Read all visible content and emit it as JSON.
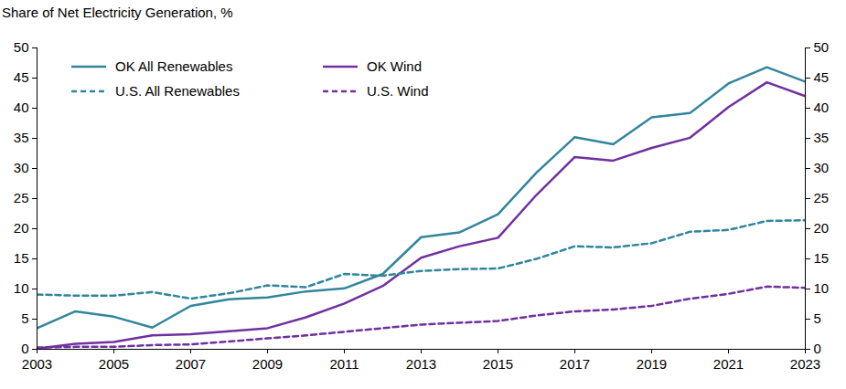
{
  "chart_data": {
    "type": "line",
    "title": "Share of Net Electricity Generation, %",
    "x": [
      2003,
      2004,
      2005,
      2006,
      2007,
      2008,
      2009,
      2010,
      2011,
      2012,
      2013,
      2014,
      2015,
      2016,
      2017,
      2018,
      2019,
      2020,
      2021,
      2022,
      2023
    ],
    "xlim": [
      2003,
      2023
    ],
    "xticks": [
      2003,
      2005,
      2007,
      2009,
      2011,
      2013,
      2015,
      2017,
      2019,
      2021,
      2023
    ],
    "ylim": [
      0,
      50
    ],
    "yticks": [
      0,
      5,
      10,
      15,
      20,
      25,
      30,
      35,
      40,
      45,
      50
    ],
    "y2lim": [
      0,
      50
    ],
    "y2ticks": [
      0,
      5,
      10,
      15,
      20,
      25,
      30,
      35,
      40,
      45,
      50
    ],
    "grid": false,
    "legend": "upper left",
    "series": [
      {
        "name": "OK All Renewables",
        "color": "#31859C",
        "line_style": "solid",
        "values": [
          3.5,
          6.3,
          5.4,
          3.6,
          7.2,
          8.3,
          8.6,
          9.6,
          10.1,
          12.5,
          18.6,
          19.4,
          22.4,
          29.3,
          35.2,
          34.0,
          38.5,
          39.2,
          44.1,
          46.8,
          44.4
        ]
      },
      {
        "name": "OK Wind",
        "color": "#7030A0",
        "line_style": "solid",
        "values": [
          0.1,
          0.9,
          1.2,
          2.3,
          2.5,
          3.0,
          3.5,
          5.3,
          7.6,
          10.5,
          15.2,
          17.1,
          18.5,
          25.6,
          31.9,
          31.3,
          33.4,
          35.1,
          40.2,
          44.3,
          42.0
        ]
      },
      {
        "name": "U.S. All Renewables",
        "color": "#31859C",
        "line_style": "dashed",
        "values": [
          9.1,
          8.9,
          8.9,
          9.5,
          8.4,
          9.3,
          10.6,
          10.3,
          12.5,
          12.2,
          13.0,
          13.3,
          13.4,
          15.0,
          17.1,
          16.9,
          17.6,
          19.5,
          19.8,
          21.3,
          21.4
        ]
      },
      {
        "name": "U.S. Wind",
        "color": "#7030A0",
        "line_style": "dashed",
        "values": [
          0.3,
          0.4,
          0.4,
          0.7,
          0.8,
          1.3,
          1.8,
          2.3,
          2.9,
          3.5,
          4.1,
          4.4,
          4.7,
          5.6,
          6.3,
          6.6,
          7.2,
          8.4,
          9.2,
          10.4,
          10.2
        ]
      }
    ]
  }
}
